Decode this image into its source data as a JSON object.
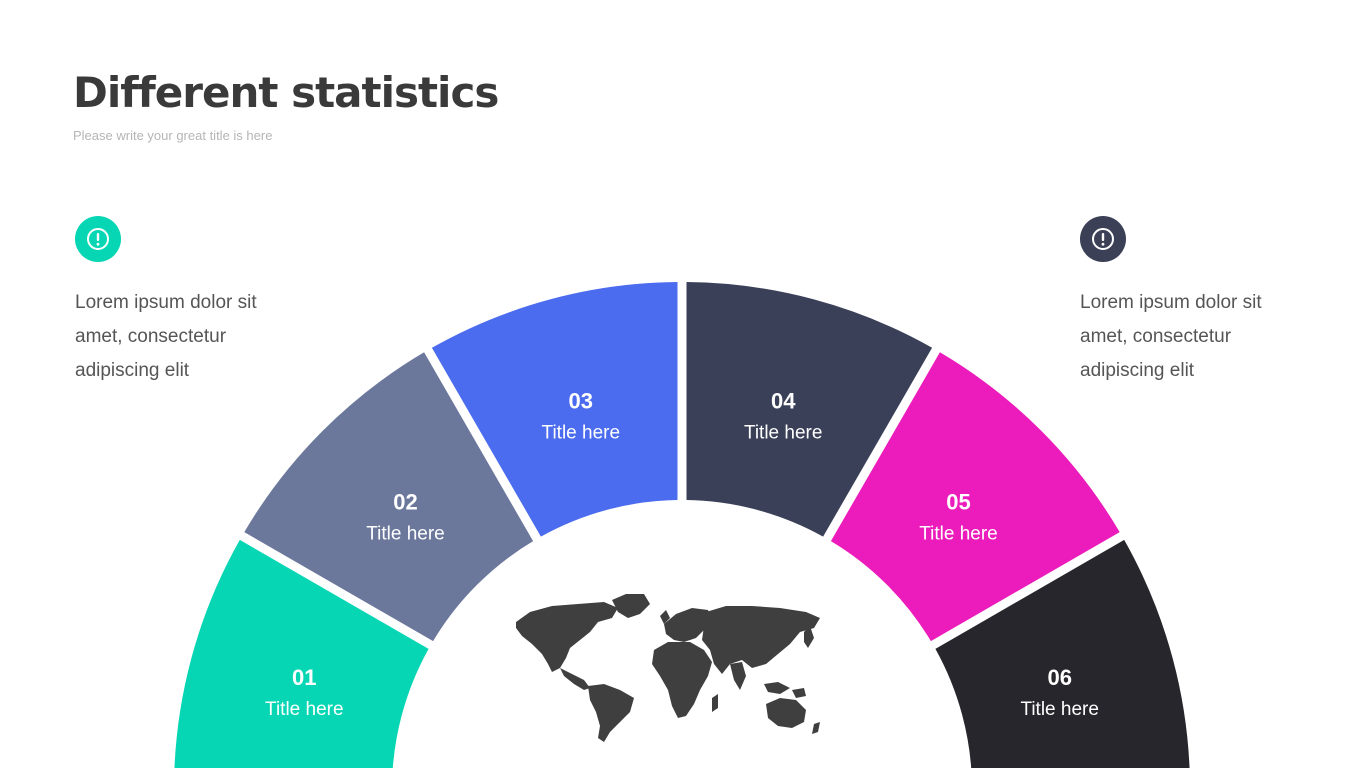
{
  "header": {
    "title": "Different statistics",
    "subtitle": "Please write your great title is here"
  },
  "left_note": {
    "icon": "exclamation-icon",
    "lines": [
      "Lorem ipsum dolor sit",
      "amet, consectetur",
      "adipiscing elit"
    ]
  },
  "right_note": {
    "icon": "exclamation-icon",
    "lines": [
      "Lorem ipsum dolor sit",
      "amet, consectetur",
      "adipiscing elit"
    ]
  },
  "segments": [
    {
      "number": "01",
      "label": "Title here",
      "color": "#06d6b3"
    },
    {
      "number": "02",
      "label": "Title here",
      "color": "#6b789c"
    },
    {
      "number": "03",
      "label": "Title here",
      "color": "#4b6cef"
    },
    {
      "number": "04",
      "label": "Title here",
      "color": "#3b4059"
    },
    {
      "number": "05",
      "label": "Title here",
      "color": "#ec1bbb"
    },
    {
      "number": "06",
      "label": "Title here",
      "color": "#26262c"
    }
  ],
  "center": {
    "icon": "world-map-icon",
    "color": "#3f3f3f"
  }
}
